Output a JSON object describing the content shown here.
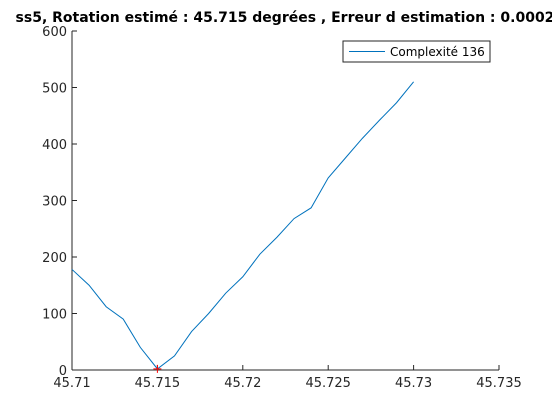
{
  "chart_data": {
    "type": "line",
    "title": "ss5, Rotation estimé : 45.715 degrées , Erreur d estimation : 0.0002",
    "xlabel": "",
    "ylabel": "",
    "xlim": [
      45.71,
      45.735
    ],
    "ylim": [
      0,
      600
    ],
    "x_ticks": [
      45.71,
      45.715,
      45.72,
      45.725,
      45.73,
      45.735
    ],
    "x_tick_labels": [
      "45.71",
      "45.715",
      "45.72",
      "45.725",
      "45.73",
      "45.735"
    ],
    "y_ticks": [
      0,
      100,
      200,
      300,
      400,
      500,
      600
    ],
    "y_tick_labels": [
      "0",
      "100",
      "200",
      "300",
      "400",
      "500",
      "600"
    ],
    "grid": false,
    "legend_position": "top-right",
    "series": [
      {
        "name": "Complexité 136",
        "color": "#0072bd",
        "x": [
          45.71,
          45.711,
          45.712,
          45.713,
          45.714,
          45.715,
          45.716,
          45.717,
          45.718,
          45.719,
          45.72,
          45.721,
          45.722,
          45.723,
          45.724,
          45.725,
          45.726,
          45.727,
          45.728,
          45.729,
          45.73
        ],
        "y": [
          178,
          150,
          112,
          90,
          40,
          2,
          25,
          68,
          100,
          136,
          165,
          205,
          235,
          268,
          287,
          340,
          375,
          410,
          442,
          473,
          510
        ]
      }
    ],
    "marker": {
      "x": 45.715,
      "y": 2,
      "symbol": "+",
      "color": "#ff0000"
    }
  }
}
